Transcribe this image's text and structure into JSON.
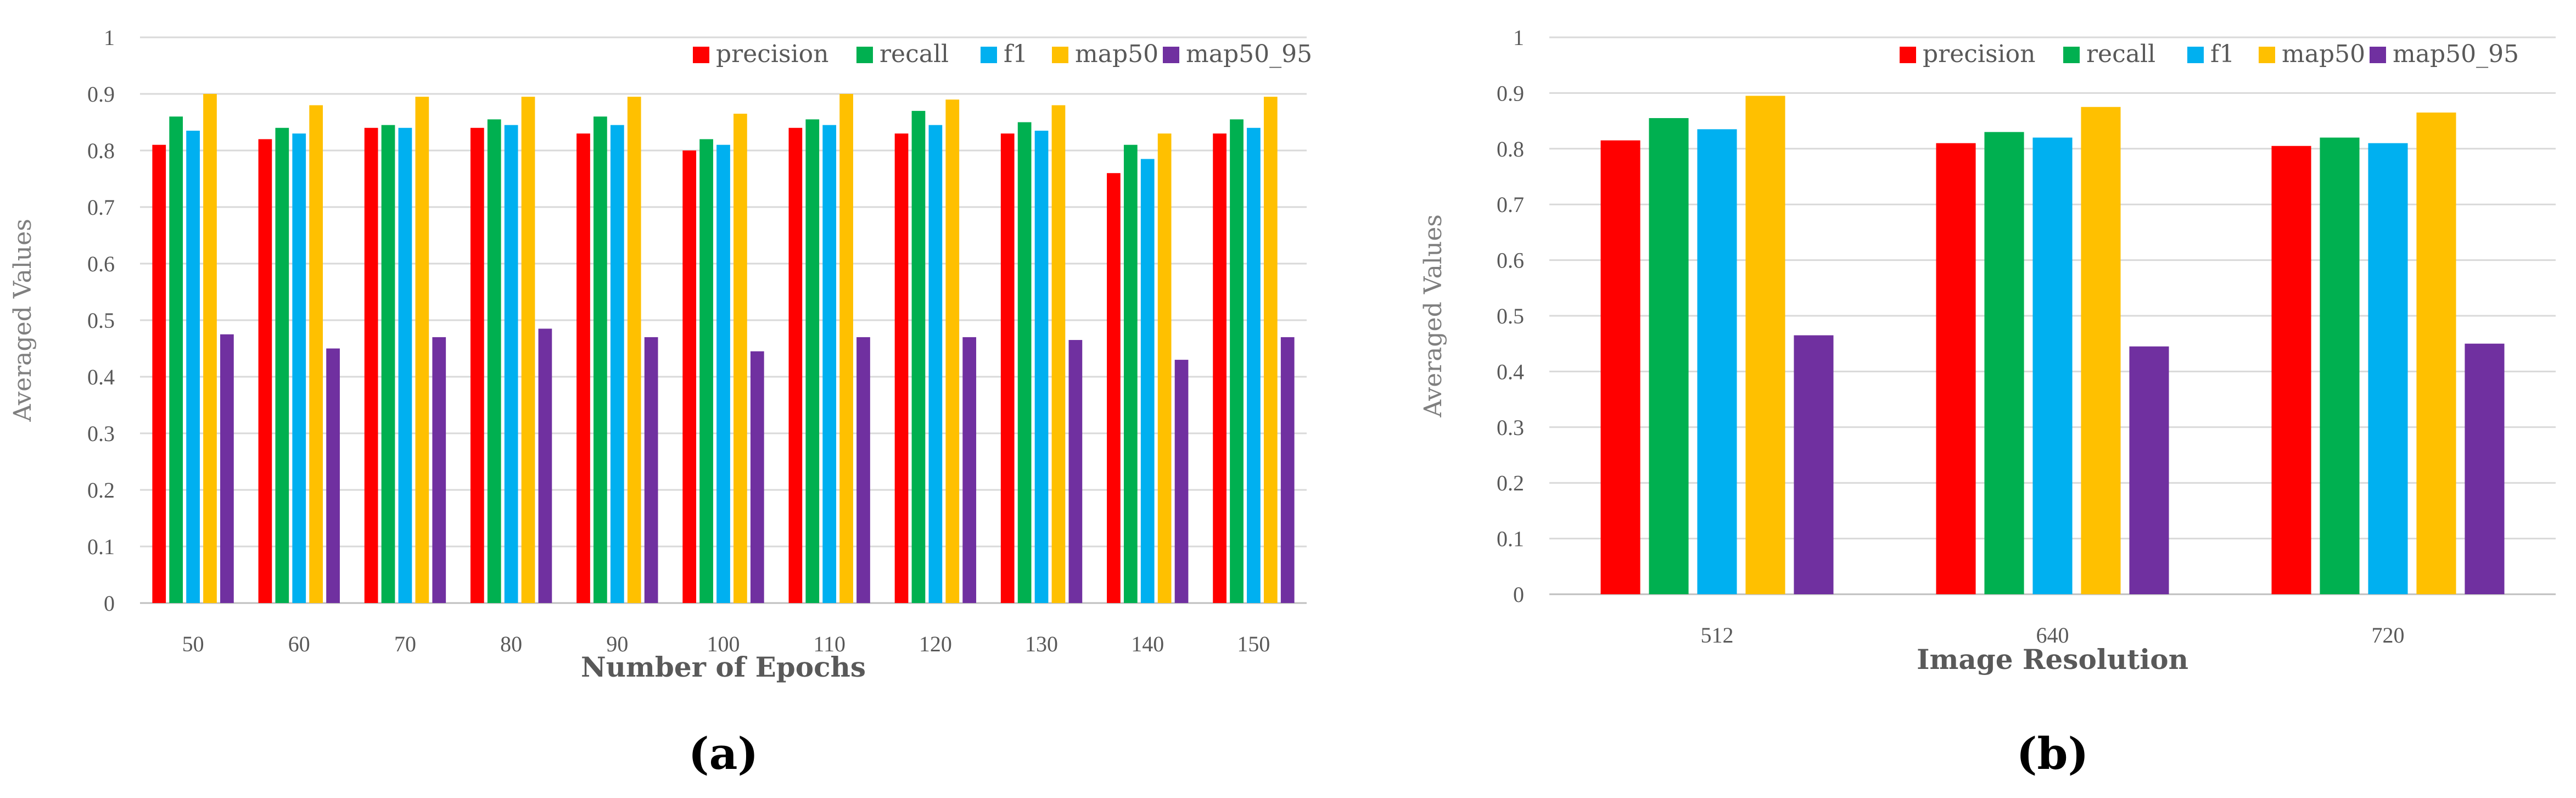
{
  "chart_data": [
    {
      "type": "bar",
      "panel_label": "(a)",
      "title": "",
      "xlabel": "Number of Epochs",
      "ylabel": "Averaged Values",
      "ylim": [
        0,
        1
      ],
      "yticks": [
        0,
        0.1,
        0.2,
        0.3,
        0.4,
        0.5,
        0.6,
        0.7,
        0.8,
        0.9,
        1
      ],
      "ytick_labels": [
        "0",
        "0.1",
        "0.2",
        "0.3",
        "0.4",
        "0.5",
        "0.6",
        "0.7",
        "0.8",
        "0.9",
        "1"
      ],
      "legend_position": "top-right",
      "categories": [
        "50",
        "60",
        "70",
        "80",
        "90",
        "100",
        "110",
        "120",
        "130",
        "140",
        "150"
      ],
      "series": [
        {
          "name": "precision",
          "color": "#ff0000",
          "values": [
            0.81,
            0.82,
            0.84,
            0.84,
            0.83,
            0.8,
            0.84,
            0.83,
            0.83,
            0.76,
            0.83
          ]
        },
        {
          "name": "recall",
          "color": "#00b050",
          "values": [
            0.86,
            0.84,
            0.845,
            0.855,
            0.86,
            0.82,
            0.855,
            0.87,
            0.85,
            0.81,
            0.855
          ]
        },
        {
          "name": "f1",
          "color": "#00b0f0",
          "values": [
            0.835,
            0.83,
            0.84,
            0.845,
            0.845,
            0.81,
            0.845,
            0.845,
            0.835,
            0.785,
            0.84
          ]
        },
        {
          "name": "map50",
          "color": "#ffc000",
          "values": [
            0.9,
            0.88,
            0.895,
            0.895,
            0.895,
            0.865,
            0.9,
            0.89,
            0.88,
            0.83,
            0.895
          ]
        },
        {
          "name": "map50_95",
          "color": "#7030a0",
          "values": [
            0.475,
            0.45,
            0.47,
            0.485,
            0.47,
            0.445,
            0.47,
            0.47,
            0.465,
            0.43,
            0.47
          ]
        }
      ]
    },
    {
      "type": "bar",
      "panel_label": "(b)",
      "title": "",
      "xlabel": "Image Resolution",
      "ylabel": "Averaged Values",
      "ylim": [
        0,
        1
      ],
      "yticks": [
        0,
        0.1,
        0.2,
        0.3,
        0.4,
        0.5,
        0.6,
        0.7,
        0.8,
        0.9,
        1
      ],
      "ytick_labels": [
        "0",
        "0.1",
        "0.2",
        "0.3",
        "0.4",
        "0.5",
        "0.6",
        "0.7",
        "0.8",
        "0.9",
        "1"
      ],
      "legend_position": "top-right",
      "categories": [
        "512",
        "640",
        "720"
      ],
      "series": [
        {
          "name": "precision",
          "color": "#ff0000",
          "values": [
            0.815,
            0.81,
            0.805
          ]
        },
        {
          "name": "recall",
          "color": "#00b050",
          "values": [
            0.855,
            0.83,
            0.82
          ]
        },
        {
          "name": "f1",
          "color": "#00b0f0",
          "values": [
            0.835,
            0.82,
            0.81
          ]
        },
        {
          "name": "map50",
          "color": "#ffc000",
          "values": [
            0.895,
            0.875,
            0.865
          ]
        },
        {
          "name": "map50_95",
          "color": "#7030a0",
          "values": [
            0.465,
            0.445,
            0.45
          ]
        }
      ]
    }
  ]
}
